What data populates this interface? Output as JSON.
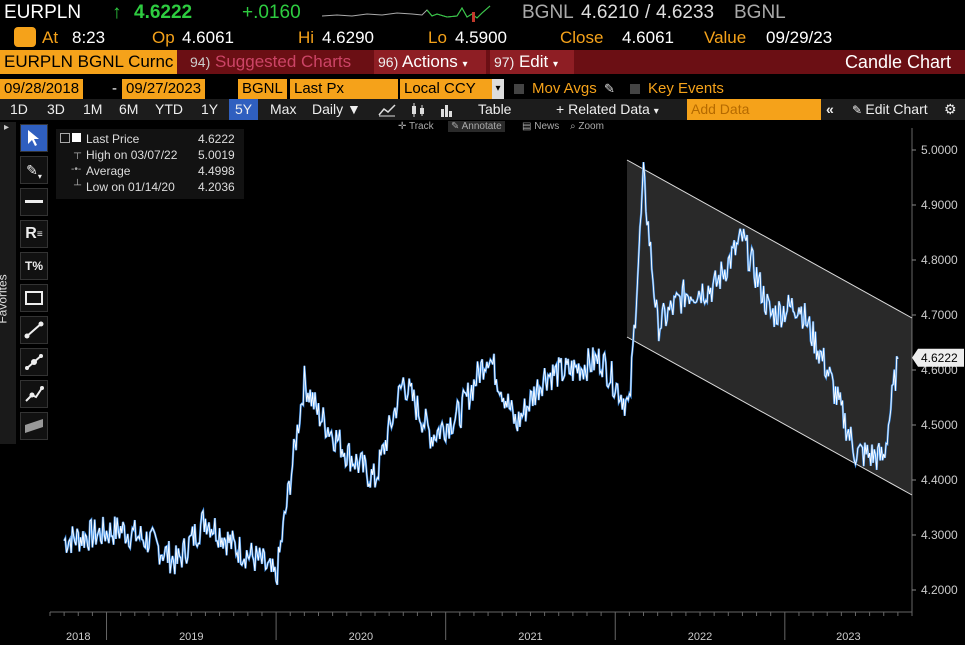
{
  "ticker": {
    "symbol": "EURPLN",
    "arrow": "↑",
    "last": "4.6222",
    "change": "+.0160",
    "source": "BGNL",
    "bid": "4.6210",
    "separator": "/",
    "ask": "4.6233",
    "source2": "BGNL"
  },
  "quote": {
    "at_label": "At",
    "at_value": "8:23",
    "open_label": "Op",
    "open_value": "4.6061",
    "high_label": "Hi",
    "high_value": "4.6290",
    "low_label": "Lo",
    "low_value": "4.5900",
    "close_label": "Close",
    "close_value": "4.6061",
    "value_label": "Value",
    "value_date": "09/29/23"
  },
  "menubar": {
    "security": "EURPLN BGNL Curnc",
    "suggested_num": "94)",
    "suggested": "Suggested Charts",
    "actions_num": "96)",
    "actions": "Actions",
    "edit_num": "97)",
    "edit": "Edit",
    "chart_type": "Candle Chart"
  },
  "params": {
    "start_date": "09/28/2018",
    "dash": "-",
    "end_date": "09/27/2023",
    "source": "BGNL",
    "field": "Last Px",
    "currency": "Local CCY",
    "mov_avgs": "Mov Avgs",
    "key_events": "Key Events"
  },
  "toolbar": {
    "periods": [
      "1D",
      "3D",
      "1M",
      "6M",
      "YTD",
      "1Y",
      "5Y",
      "Max"
    ],
    "selected_period": "5Y",
    "frequency": "Daily",
    "table": "Table",
    "related_data": "Related Data",
    "add_data_placeholder": "Add Data",
    "edit_chart": "Edit Chart"
  },
  "mini_tools": {
    "track": "Track",
    "annotate": "Annotate",
    "news": "News",
    "zoom": "Zoom"
  },
  "sidebar": {
    "favorites": "Favorites"
  },
  "legend": {
    "last_label": "Last Price",
    "last_value": "4.6222",
    "high_label": "High on 03/07/22",
    "high_value": "5.0019",
    "avg_label": "Average",
    "avg_value": "4.4998",
    "low_label": "Low on 01/14/20",
    "low_value": "4.2036"
  },
  "colors": {
    "accent": "#f5a21a",
    "up": "#2ecc40",
    "price_line": "#3f8fe6",
    "menu_bg": "#6b0f14"
  },
  "chart_data": {
    "type": "line",
    "series": [
      {
        "name": "Last Price",
        "x": [
          "2018-10",
          "2018-12",
          "2019-02",
          "2019-04",
          "2019-06",
          "2019-08",
          "2019-10",
          "2019-12",
          "2020-01",
          "2020-03",
          "2020-04",
          "2020-06",
          "2020-08",
          "2020-10",
          "2020-12",
          "2021-02",
          "2021-04",
          "2021-06",
          "2021-08",
          "2021-10",
          "2021-12",
          "2022-02",
          "2022-03",
          "2022-04",
          "2022-06",
          "2022-08",
          "2022-10",
          "2022-12",
          "2023-02",
          "2023-04",
          "2023-06",
          "2023-08",
          "2023-09"
        ],
        "y": [
          4.29,
          4.3,
          4.31,
          4.29,
          4.25,
          4.33,
          4.28,
          4.25,
          4.22,
          4.58,
          4.52,
          4.45,
          4.4,
          4.58,
          4.48,
          4.52,
          4.63,
          4.5,
          4.59,
          4.6,
          4.62,
          4.53,
          4.95,
          4.68,
          4.74,
          4.75,
          4.84,
          4.7,
          4.72,
          4.6,
          4.45,
          4.44,
          4.62
        ]
      }
    ],
    "yaxis_ticks": [
      "5.0000",
      "4.9000",
      "4.8000",
      "4.7000",
      "4.6000",
      "4.5000",
      "4.4000",
      "4.3000",
      "4.2000"
    ],
    "ylim": [
      4.16,
      5.04
    ],
    "x_labels": [
      "2018",
      "2019",
      "2020",
      "2021",
      "2022",
      "2023"
    ],
    "last_value_label": "4.6222",
    "grid": false
  }
}
